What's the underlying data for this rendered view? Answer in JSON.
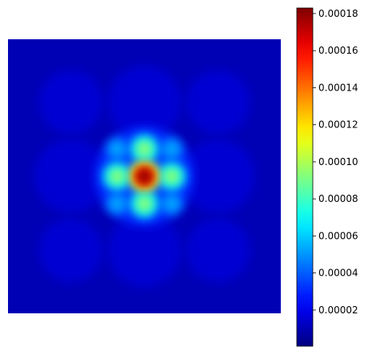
{
  "chart_data": {
    "type": "heatmap",
    "title": "",
    "xlabel": "",
    "ylabel": "",
    "axes_visible": false,
    "grid": false,
    "colormap": "jet",
    "colorbar": {
      "position": "right",
      "vmin": 5e-07,
      "vmax": 0.000183,
      "ticks": [
        2e-05,
        4e-05,
        6e-05,
        8e-05,
        0.0001,
        0.00012,
        0.00014,
        0.00016,
        0.00018
      ],
      "tick_labels": [
        "0.00002",
        "0.00004",
        "0.00006",
        "0.00008",
        "0.00010",
        "0.00012",
        "0.00014",
        "0.00016",
        "0.00018"
      ]
    },
    "features": [
      {
        "name": "central-peak",
        "x": 0.5,
        "y": 0.5,
        "value": 0.000183
      },
      {
        "name": "lobe-top",
        "x": 0.5,
        "y": 0.4,
        "value": 9.5e-05
      },
      {
        "name": "lobe-bottom",
        "x": 0.5,
        "y": 0.6,
        "value": 9.5e-05
      },
      {
        "name": "lobe-left",
        "x": 0.4,
        "y": 0.5,
        "value": 9.5e-05
      },
      {
        "name": "lobe-right",
        "x": 0.6,
        "y": 0.5,
        "value": 9.5e-05
      },
      {
        "name": "lobe-top-left",
        "x": 0.4,
        "y": 0.4,
        "value": 5.2e-05
      },
      {
        "name": "lobe-top-right",
        "x": 0.6,
        "y": 0.4,
        "value": 5.2e-05
      },
      {
        "name": "lobe-bottom-left",
        "x": 0.4,
        "y": 0.6,
        "value": 5.2e-05
      },
      {
        "name": "lobe-bottom-right",
        "x": 0.6,
        "y": 0.6,
        "value": 5.2e-05
      },
      {
        "name": "halo-ring",
        "x": 0.5,
        "y": 0.5,
        "value": 3e-05
      },
      {
        "name": "background",
        "x": 0.0,
        "y": 0.0,
        "value": 1e-05
      }
    ]
  },
  "colors": {
    "background": "#ffffff",
    "frame": "#000000"
  }
}
